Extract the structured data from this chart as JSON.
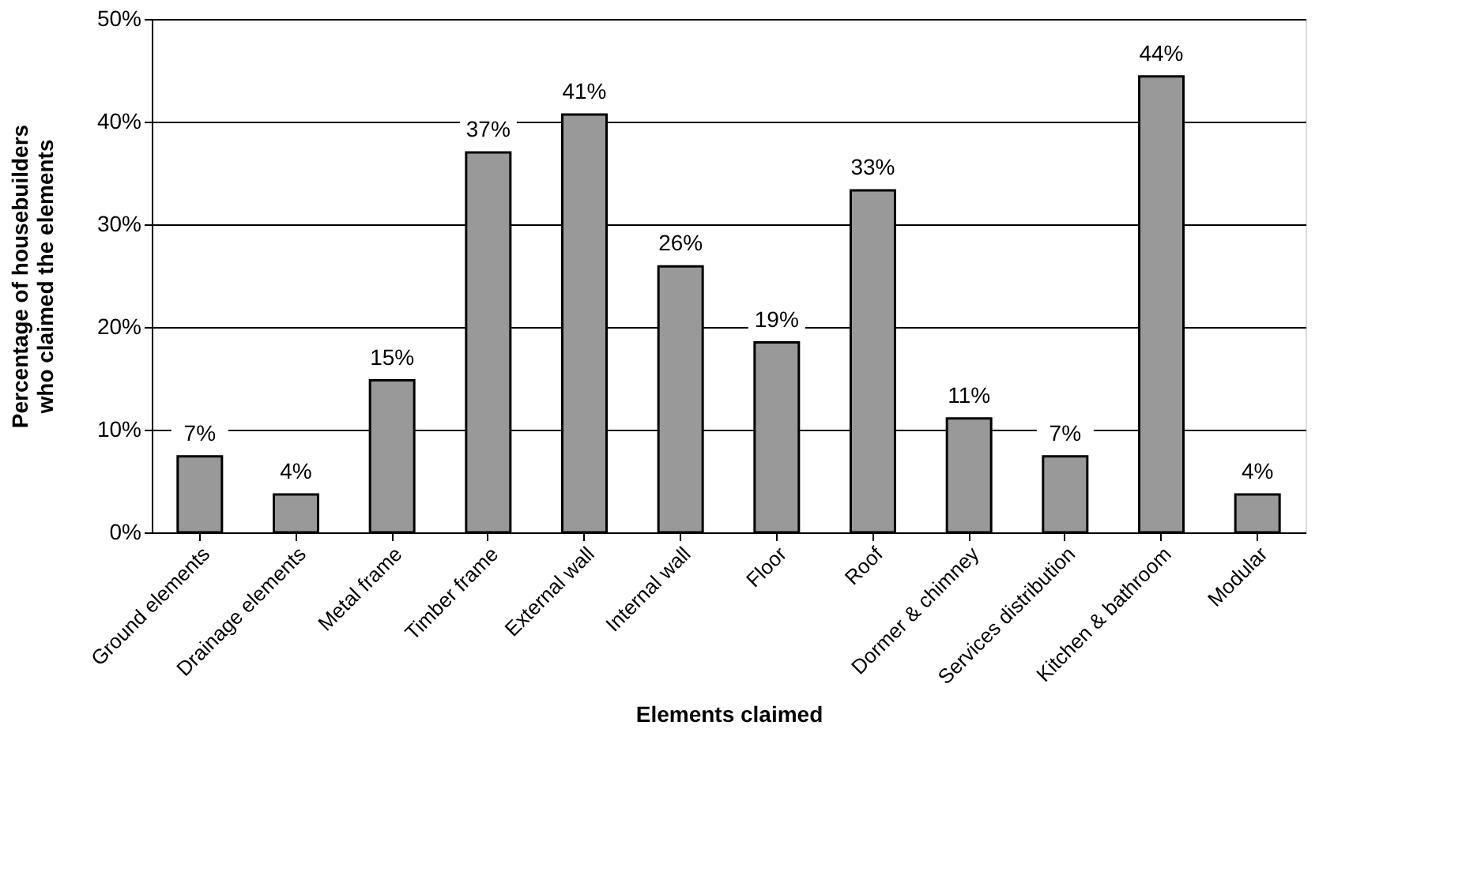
{
  "chart_data": {
    "type": "bar",
    "xlabel": "Elements claimed",
    "ylabel": "Percentage of housebuilders\nwho claimed the elements",
    "categories": [
      "Ground elements",
      "Drainage elements",
      "Metal frame",
      "Timber frame",
      "External wall",
      "Internal wall",
      "Floor",
      "Roof",
      "Dormer & chimney",
      "Services distribution",
      "Kitchen & bathroom",
      "Modular"
    ],
    "values": [
      7.4,
      3.7,
      14.8,
      37.0,
      40.7,
      25.9,
      18.5,
      33.3,
      11.1,
      7.4,
      44.4,
      3.7
    ],
    "value_labels": [
      "7%",
      "4%",
      "15%",
      "37%",
      "41%",
      "26%",
      "19%",
      "33%",
      "11%",
      "7%",
      "44%",
      "4%"
    ],
    "color": "#999999",
    "ylim": [
      0,
      50
    ],
    "yticks": [
      {
        "value": 0,
        "label": "0%"
      },
      {
        "value": 10,
        "label": "10%"
      },
      {
        "value": 20,
        "label": "20%"
      },
      {
        "value": 30,
        "label": "30%"
      },
      {
        "value": 40,
        "label": "40%"
      },
      {
        "value": 50,
        "label": "50%"
      }
    ],
    "grid": "y"
  }
}
